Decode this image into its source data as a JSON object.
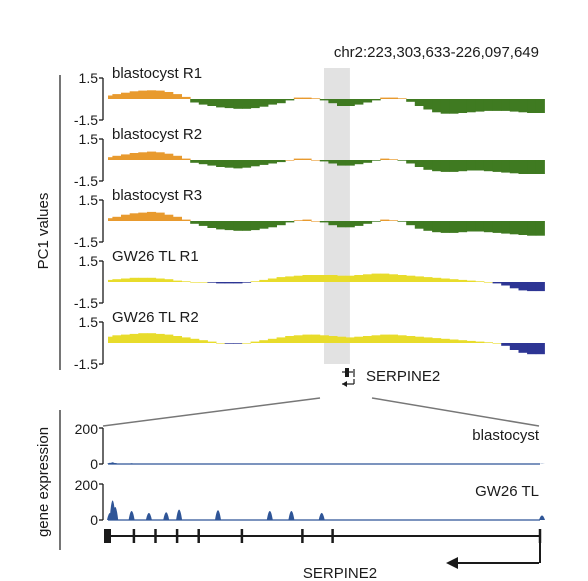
{
  "region": "chr2:223,303,633-226,097,649",
  "gene": "SERPINE2",
  "colors": {
    "blastocyst": "#e89a2e",
    "blastocyst_negative": "#3f7a21",
    "gw26": "#e8dc2b",
    "gw26_negative": "#2d3594",
    "expression": "#2f5597",
    "highlight": "#e2e2e2",
    "axis": "#1a1a1a"
  },
  "chart_data": [
    {
      "type": "area",
      "ylabel": "PC1 values",
      "yticks": [
        "1.5",
        "-1.5"
      ],
      "ylim": [
        -1.5,
        1.5
      ],
      "highlight_region": [
        0.5,
        0.56
      ],
      "x": [
        0.0,
        0.02,
        0.04,
        0.06,
        0.08,
        0.1,
        0.12,
        0.14,
        0.16,
        0.18,
        0.2,
        0.22,
        0.24,
        0.26,
        0.28,
        0.3,
        0.32,
        0.34,
        0.36,
        0.38,
        0.4,
        0.42,
        0.44,
        0.46,
        0.48,
        0.5,
        0.52,
        0.54,
        0.56,
        0.58,
        0.6,
        0.62,
        0.64,
        0.66,
        0.68,
        0.7,
        0.72,
        0.74,
        0.76,
        0.78,
        0.8,
        0.82,
        0.84,
        0.86,
        0.88,
        0.9,
        0.92,
        0.94,
        0.96,
        0.98,
        1.0
      ],
      "series": [
        {
          "name": "blastocyst R1",
          "values": [
            0.25,
            0.35,
            0.45,
            0.55,
            0.6,
            0.62,
            0.6,
            0.5,
            0.35,
            0.15,
            -0.25,
            -0.4,
            -0.5,
            -0.6,
            -0.65,
            -0.7,
            -0.7,
            -0.65,
            -0.55,
            -0.4,
            -0.3,
            -0.1,
            0.1,
            0.1,
            0.05,
            -0.1,
            -0.3,
            -0.5,
            -0.5,
            -0.4,
            -0.25,
            -0.1,
            0.1,
            0.1,
            0.05,
            -0.2,
            -0.5,
            -0.75,
            -0.95,
            -1.05,
            -1.05,
            -1.0,
            -0.95,
            -0.9,
            -0.85,
            -0.85,
            -0.85,
            -0.9,
            -0.95,
            -1.0,
            -1.0
          ]
        },
        {
          "name": "blastocyst R2",
          "values": [
            0.2,
            0.3,
            0.4,
            0.5,
            0.55,
            0.6,
            0.55,
            0.45,
            0.3,
            0.1,
            -0.2,
            -0.3,
            -0.4,
            -0.5,
            -0.55,
            -0.6,
            -0.55,
            -0.45,
            -0.35,
            -0.25,
            -0.15,
            0.0,
            0.1,
            0.1,
            0.0,
            -0.1,
            -0.25,
            -0.4,
            -0.4,
            -0.3,
            -0.2,
            -0.05,
            0.1,
            0.05,
            -0.05,
            -0.25,
            -0.5,
            -0.7,
            -0.8,
            -0.85,
            -0.85,
            -0.8,
            -0.75,
            -0.75,
            -0.8,
            -0.85,
            -0.9,
            -0.95,
            -1.0,
            -1.0,
            -1.0
          ]
        },
        {
          "name": "blastocyst R3",
          "values": [
            0.2,
            0.3,
            0.45,
            0.55,
            0.6,
            0.65,
            0.6,
            0.45,
            0.3,
            0.1,
            -0.2,
            -0.35,
            -0.5,
            -0.6,
            -0.65,
            -0.7,
            -0.7,
            -0.65,
            -0.55,
            -0.45,
            -0.3,
            -0.1,
            0.05,
            0.1,
            0.0,
            -0.1,
            -0.3,
            -0.45,
            -0.45,
            -0.35,
            -0.2,
            -0.05,
            0.1,
            0.05,
            -0.05,
            -0.3,
            -0.55,
            -0.7,
            -0.8,
            -0.85,
            -0.85,
            -0.8,
            -0.75,
            -0.75,
            -0.8,
            -0.85,
            -0.9,
            -0.95,
            -1.0,
            -1.05,
            -1.05
          ]
        },
        {
          "name": "GW26 TL R1",
          "values": [
            0.15,
            0.2,
            0.25,
            0.3,
            0.3,
            0.3,
            0.25,
            0.2,
            0.1,
            0.05,
            0.0,
            0.0,
            -0.05,
            -0.1,
            -0.1,
            -0.1,
            -0.05,
            0.05,
            0.15,
            0.25,
            0.35,
            0.4,
            0.45,
            0.5,
            0.5,
            0.5,
            0.5,
            0.45,
            0.45,
            0.5,
            0.55,
            0.6,
            0.6,
            0.55,
            0.5,
            0.45,
            0.4,
            0.35,
            0.3,
            0.25,
            0.2,
            0.15,
            0.1,
            0.05,
            0.0,
            -0.1,
            -0.25,
            -0.45,
            -0.6,
            -0.65,
            -0.65
          ]
        },
        {
          "name": "GW26 TL R2",
          "values": [
            0.45,
            0.55,
            0.6,
            0.65,
            0.7,
            0.7,
            0.65,
            0.6,
            0.5,
            0.4,
            0.3,
            0.2,
            0.1,
            0.0,
            -0.05,
            -0.05,
            0.0,
            0.1,
            0.2,
            0.3,
            0.4,
            0.5,
            0.55,
            0.6,
            0.6,
            0.55,
            0.5,
            0.45,
            0.4,
            0.45,
            0.5,
            0.55,
            0.6,
            0.6,
            0.55,
            0.5,
            0.45,
            0.4,
            0.35,
            0.3,
            0.25,
            0.2,
            0.15,
            0.1,
            0.05,
            0.0,
            -0.2,
            -0.5,
            -0.7,
            -0.8,
            -0.8
          ]
        }
      ]
    },
    {
      "type": "area",
      "ylabel": "gene expression",
      "yticks": [
        "200",
        "0"
      ],
      "ylim": [
        0,
        200
      ],
      "x": [
        0.0,
        0.006,
        0.012,
        0.05,
        0.09,
        0.13,
        0.16,
        0.25,
        0.37,
        0.42,
        0.49,
        0.78,
        1.0
      ],
      "series": [
        {
          "name": "blastocyst",
          "values": [
            10,
            14,
            8,
            6,
            4,
            3,
            2,
            1,
            0,
            0,
            0,
            0,
            2
          ]
        },
        {
          "name": "GW26 TL",
          "values": [
            55,
            150,
            100,
            70,
            55,
            60,
            80,
            75,
            70,
            70,
            55,
            0,
            35
          ]
        }
      ]
    }
  ],
  "gene_model": {
    "name": "SERPINE2",
    "exon_positions": [
      0.0,
      0.06,
      0.11,
      0.16,
      0.21,
      0.31,
      0.45,
      0.52,
      1.0
    ]
  }
}
